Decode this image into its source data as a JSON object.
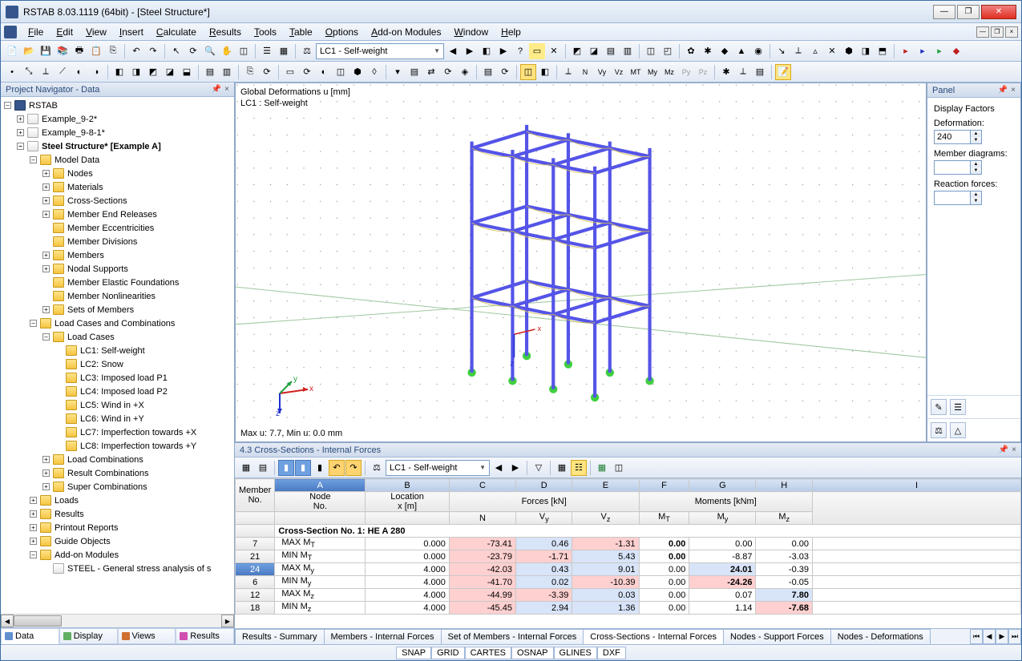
{
  "window": {
    "title": "RSTAB 8.03.1119 (64bit) - [Steel Structure*]"
  },
  "menu": [
    "File",
    "Edit",
    "View",
    "Insert",
    "Calculate",
    "Results",
    "Tools",
    "Table",
    "Options",
    "Add-on Modules",
    "Window",
    "Help"
  ],
  "lc_dropdown": "LC1 - Self-weight",
  "navigator": {
    "title": "Project Navigator - Data",
    "root": "RSTAB",
    "projects": [
      "Example_9-2*",
      "Example_9-8-1*"
    ],
    "active": "Steel Structure* [Example A]",
    "model_data": "Model Data",
    "model_items": [
      "Nodes",
      "Materials",
      "Cross-Sections",
      "Member End Releases",
      "Member Eccentricities",
      "Member Divisions",
      "Members",
      "Nodal Supports",
      "Member Elastic Foundations",
      "Member Nonlinearities",
      "Sets of Members"
    ],
    "lcc": "Load Cases and Combinations",
    "load_cases_hdr": "Load Cases",
    "load_cases": [
      "LC1: Self-weight",
      "LC2: Snow",
      "LC3: Imposed load P1",
      "LC4: Imposed load P2",
      "LC5: Wind in +X",
      "LC6: Wind in +Y",
      "LC7: Imperfection towards +X",
      "LC8: Imperfection towards +Y"
    ],
    "combos": [
      "Load Combinations",
      "Result Combinations",
      "Super Combinations"
    ],
    "other": [
      "Loads",
      "Results",
      "Printout Reports",
      "Guide Objects",
      "Add-on Modules"
    ],
    "addon_item": "STEEL - General stress analysis of s",
    "tabs": [
      "Data",
      "Display",
      "Views",
      "Results"
    ]
  },
  "viewport": {
    "label1": "Global Deformations u [mm]",
    "label2": "LC1 : Self-weight",
    "footer": "Max u: 7.7, Min u: 0.0 mm",
    "colors": {
      "member": "#5454e8",
      "support": "#40d040",
      "grid": "#c8c8c8",
      "deform": "#d8c050"
    }
  },
  "panel": {
    "title": "Panel",
    "df_title": "Display Factors",
    "deformation_lbl": "Deformation:",
    "deformation_val": "240",
    "member_diag_lbl": "Member diagrams:",
    "reaction_lbl": "Reaction forces:"
  },
  "lower": {
    "title": "4.3 Cross-Sections - Internal Forces",
    "dropdown": "LC1 - Self-weight",
    "headers_top": {
      "member": "Member",
      "no": "No.",
      "node": "Node",
      "node_no": "No.",
      "loc": "Location",
      "loc_unit": "x [m]",
      "forces": "Forces [kN]",
      "moments": "Moments [kNm]"
    },
    "cols": [
      "A",
      "B",
      "C",
      "D",
      "E",
      "F",
      "G",
      "H",
      "I"
    ],
    "subheads": {
      "N": "N",
      "Vy": "V<sub>y</sub>",
      "Vz": "V<sub>z</sub>",
      "MT": "M<sub>T</sub>",
      "My": "M<sub>y</sub>",
      "Mz": "M<sub>z</sub>"
    },
    "section_row": "Cross-Section No. 1: HE A 280",
    "rows": [
      {
        "id": "7",
        "label": "MAX M<sub>T</sub>",
        "x": "0.000",
        "N": "-73.41",
        "Vy": "0.46",
        "Vz": "-1.31",
        "MT": "0.00",
        "My": "0.00",
        "Mz": "0.00",
        "MTbold": true
      },
      {
        "id": "21",
        "label": "MIN M<sub>T</sub>",
        "x": "0.000",
        "N": "-23.79",
        "Vy": "-1.71",
        "Vz": "5.43",
        "MT": "0.00",
        "My": "-8.87",
        "Mz": "-3.03",
        "MTbold": true
      },
      {
        "id": "24",
        "label": "MAX M<sub>y</sub>",
        "x": "4.000",
        "N": "-42.03",
        "Vy": "0.43",
        "Vz": "9.01",
        "MT": "0.00",
        "My": "24.01",
        "Mz": "-0.39",
        "Mybold": true,
        "active": true
      },
      {
        "id": "6",
        "label": "MIN M<sub>y</sub>",
        "x": "4.000",
        "N": "-41.70",
        "Vy": "0.02",
        "Vz": "-10.39",
        "MT": "0.00",
        "My": "-24.26",
        "Mz": "-0.05",
        "Mybold": true
      },
      {
        "id": "12",
        "label": "MAX M<sub>z</sub>",
        "x": "4.000",
        "N": "-44.99",
        "Vy": "-3.39",
        "Vz": "0.03",
        "MT": "0.00",
        "My": "0.07",
        "Mz": "7.80",
        "Mzbold": true
      },
      {
        "id": "18",
        "label": "MIN M<sub>z</sub>",
        "x": "4.000",
        "N": "-45.45",
        "Vy": "2.94",
        "Vz": "1.36",
        "MT": "0.00",
        "My": "1.14",
        "Mz": "-7.68",
        "Mzbold": true
      }
    ],
    "tabs": [
      "Results - Summary",
      "Members - Internal Forces",
      "Set of Members - Internal Forces",
      "Cross-Sections - Internal Forces",
      "Nodes - Support Forces",
      "Nodes - Deformations"
    ],
    "active_tab": 3
  },
  "status": [
    "SNAP",
    "GRID",
    "CARTES",
    "OSNAP",
    "GLINES",
    "DXF"
  ]
}
